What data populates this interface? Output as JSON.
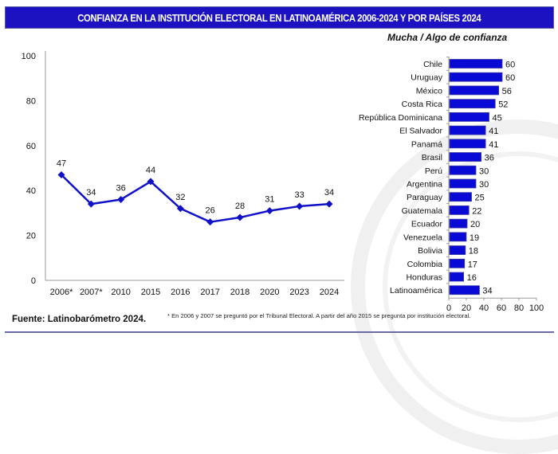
{
  "header": {
    "title": "CONFIANZA EN LA INSTITUCIÓN ELECTORAL EN LATINOAMÉRICA 2006-2024 Y POR PAÍSES 2024",
    "subtitle": "Mucha / Algo de confianza"
  },
  "footer": {
    "source": "Fuente: Latinobarómetro 2024.",
    "note": "* En 2006 y 2007  se preguntó por el Tribunal Electoral. A partir del año 2015 se pregunta por institución electoral."
  },
  "colors": {
    "banner": "#1d12c2",
    "series": "#1010c8",
    "bar": "#0a0ad6"
  },
  "chart_data": [
    {
      "type": "line",
      "title": "Confianza en la institución electoral, Latinoamérica 2006-2024",
      "xlabel": "",
      "ylabel": "",
      "categories": [
        "2006*",
        "2007*",
        "2010",
        "2015",
        "2016",
        "2017",
        "2018",
        "2020",
        "2023",
        "2024"
      ],
      "series": [
        {
          "name": "Latinoamérica",
          "values": [
            47,
            34,
            36,
            44,
            32,
            26,
            28,
            31,
            33,
            34
          ]
        }
      ],
      "ylim": [
        0,
        100
      ],
      "yticks": [
        0,
        20,
        40,
        60,
        80,
        100
      ],
      "marker": "diamond",
      "data_labels": true,
      "grid": false,
      "legend": "none"
    },
    {
      "type": "bar",
      "orientation": "horizontal",
      "title": "Mucha / Algo de confianza",
      "categories": [
        "Chile",
        "Uruguay",
        "México",
        "Costa Rica",
        "República Dominicana",
        "El Salvador",
        "Panamá",
        "Brasil",
        "Perú",
        "Argentina",
        "Paraguay",
        "Guatemala",
        "Ecuador",
        "Venezuela",
        "Bolivia",
        "Colombia",
        "Honduras",
        "Latinoamérica"
      ],
      "values": [
        60,
        60,
        56,
        52,
        45,
        41,
        41,
        36,
        30,
        30,
        25,
        22,
        20,
        19,
        18,
        17,
        16,
        34
      ],
      "xlim": [
        0,
        100
      ],
      "xticks": [
        0,
        20,
        40,
        60,
        80,
        100
      ],
      "data_labels": true,
      "grid": false,
      "legend": "none"
    }
  ]
}
